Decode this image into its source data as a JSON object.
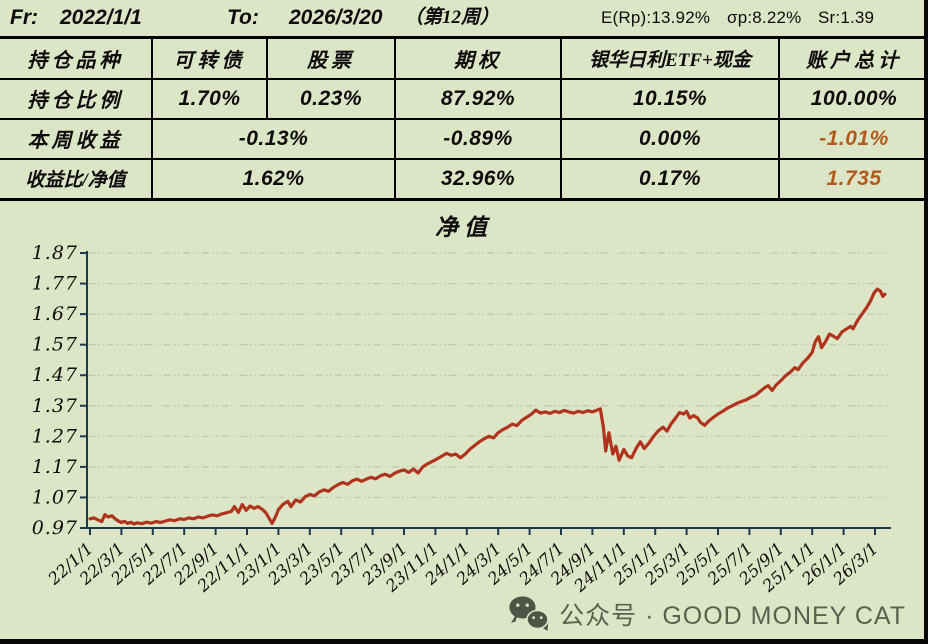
{
  "header": {
    "fr_label": "Fr:",
    "fr_value": "2022/1/1",
    "to_label": "To:",
    "to_value": "2026/3/20",
    "week_note": "（第12周）",
    "stat_erp": "E(Rp):13.92%",
    "stat_sigma": "σp:8.22%",
    "stat_sr": "Sr:1.39"
  },
  "table": {
    "columns": [
      "持仓品种",
      "可转债",
      "股票",
      "期权",
      "银华日利ETF+现金",
      "账户总计"
    ],
    "row_ratio": {
      "label": "持仓比例",
      "cells": [
        "1.70%",
        "0.23%",
        "87.92%",
        "10.15%",
        "100.00%"
      ]
    },
    "row_week": {
      "label": "本周收益",
      "merged": "-0.13%",
      "option": "-0.89%",
      "etf": "0.00%",
      "total": "-1.01%"
    },
    "row_return": {
      "label": "收益比/净值",
      "merged": "1.62%",
      "option": "32.96%",
      "etf": "0.17%",
      "total": "1.735"
    }
  },
  "chart_data": {
    "type": "line",
    "title": "净值",
    "xlabel": "",
    "ylabel": "",
    "ylim": [
      0.97,
      1.87
    ],
    "grid": "horizontal dash-dot",
    "legend": "none",
    "line_color": "#b0331d",
    "axis_color": "#1c3a4a",
    "y_ticks": [
      "0.97",
      "1.07",
      "1.17",
      "1.27",
      "1.37",
      "1.47",
      "1.57",
      "1.67",
      "1.77",
      "1.87"
    ],
    "x_labels": [
      "22/1/1",
      "22/3/1",
      "22/5/1",
      "22/7/1",
      "22/9/1",
      "22/11/1",
      "23/1/1",
      "23/3/1",
      "23/5/1",
      "23/7/1",
      "23/9/1",
      "23/11/1",
      "24/1/1",
      "24/3/1",
      "24/5/1",
      "24/7/1",
      "24/9/1",
      "24/11/1",
      "25/1/1",
      "25/3/1",
      "25/5/1",
      "25/7/1",
      "25/9/1",
      "25/11/1",
      "26/1/1",
      "26/3/1"
    ],
    "x_months_per_tick": 2,
    "series": [
      {
        "name": "净值",
        "x_unit": "months since 2022/1/1",
        "points": [
          [
            0,
            1.0
          ],
          [
            0.25,
            1.003
          ],
          [
            0.5,
            0.997
          ],
          [
            0.75,
            0.991
          ],
          [
            0.95,
            1.014
          ],
          [
            1.15,
            1.006
          ],
          [
            1.4,
            1.01
          ],
          [
            1.6,
            1.0
          ],
          [
            1.8,
            0.993
          ],
          [
            2.0,
            0.988
          ],
          [
            2.2,
            0.992
          ],
          [
            2.4,
            0.985
          ],
          [
            2.6,
            0.989
          ],
          [
            2.8,
            0.983
          ],
          [
            3.0,
            0.987
          ],
          [
            3.3,
            0.984
          ],
          [
            3.6,
            0.989
          ],
          [
            3.9,
            0.986
          ],
          [
            4.2,
            0.991
          ],
          [
            4.5,
            0.988
          ],
          [
            4.8,
            0.993
          ],
          [
            5.1,
            0.997
          ],
          [
            5.4,
            0.994
          ],
          [
            5.7,
            1.0
          ],
          [
            6.0,
            0.998
          ],
          [
            6.3,
            1.003
          ],
          [
            6.6,
            1.0
          ],
          [
            6.9,
            1.006
          ],
          [
            7.2,
            1.003
          ],
          [
            7.5,
            1.009
          ],
          [
            7.8,
            1.013
          ],
          [
            8.1,
            1.01
          ],
          [
            8.4,
            1.016
          ],
          [
            8.7,
            1.02
          ],
          [
            9.0,
            1.024
          ],
          [
            9.2,
            1.04
          ],
          [
            9.45,
            1.021
          ],
          [
            9.7,
            1.047
          ],
          [
            9.95,
            1.028
          ],
          [
            10.2,
            1.042
          ],
          [
            10.45,
            1.034
          ],
          [
            10.7,
            1.04
          ],
          [
            11.0,
            1.03
          ],
          [
            11.2,
            1.02
          ],
          [
            11.45,
            0.998
          ],
          [
            11.6,
            0.985
          ],
          [
            11.8,
            1.005
          ],
          [
            12.0,
            1.03
          ],
          [
            12.3,
            1.048
          ],
          [
            12.6,
            1.057
          ],
          [
            12.8,
            1.04
          ],
          [
            13.1,
            1.062
          ],
          [
            13.4,
            1.055
          ],
          [
            13.7,
            1.072
          ],
          [
            14.0,
            1.08
          ],
          [
            14.3,
            1.075
          ],
          [
            14.6,
            1.088
          ],
          [
            14.9,
            1.095
          ],
          [
            15.2,
            1.09
          ],
          [
            15.5,
            1.103
          ],
          [
            15.8,
            1.112
          ],
          [
            16.1,
            1.119
          ],
          [
            16.4,
            1.113
          ],
          [
            16.7,
            1.124
          ],
          [
            17.0,
            1.13
          ],
          [
            17.3,
            1.123
          ],
          [
            17.6,
            1.13
          ],
          [
            17.9,
            1.136
          ],
          [
            18.2,
            1.131
          ],
          [
            18.5,
            1.141
          ],
          [
            18.8,
            1.146
          ],
          [
            19.1,
            1.139
          ],
          [
            19.4,
            1.149
          ],
          [
            19.7,
            1.156
          ],
          [
            20.0,
            1.16
          ],
          [
            20.3,
            1.152
          ],
          [
            20.6,
            1.163
          ],
          [
            20.9,
            1.15
          ],
          [
            21.2,
            1.17
          ],
          [
            21.5,
            1.18
          ],
          [
            21.8,
            1.188
          ],
          [
            22.1,
            1.196
          ],
          [
            22.4,
            1.205
          ],
          [
            22.7,
            1.214
          ],
          [
            23.0,
            1.208
          ],
          [
            23.3,
            1.212
          ],
          [
            23.6,
            1.2
          ],
          [
            23.9,
            1.212
          ],
          [
            24.2,
            1.228
          ],
          [
            24.5,
            1.24
          ],
          [
            24.8,
            1.252
          ],
          [
            25.1,
            1.262
          ],
          [
            25.4,
            1.27
          ],
          [
            25.7,
            1.265
          ],
          [
            26.0,
            1.282
          ],
          [
            26.3,
            1.292
          ],
          [
            26.6,
            1.3
          ],
          [
            26.9,
            1.31
          ],
          [
            27.2,
            1.305
          ],
          [
            27.5,
            1.322
          ],
          [
            27.8,
            1.332
          ],
          [
            28.1,
            1.342
          ],
          [
            28.4,
            1.356
          ],
          [
            28.7,
            1.346
          ],
          [
            29.0,
            1.35
          ],
          [
            29.3,
            1.345
          ],
          [
            29.6,
            1.352
          ],
          [
            29.9,
            1.348
          ],
          [
            30.2,
            1.355
          ],
          [
            30.5,
            1.35
          ],
          [
            30.8,
            1.346
          ],
          [
            31.1,
            1.352
          ],
          [
            31.4,
            1.348
          ],
          [
            31.7,
            1.354
          ],
          [
            32.0,
            1.35
          ],
          [
            32.3,
            1.356
          ],
          [
            32.5,
            1.36
          ],
          [
            32.7,
            1.3
          ],
          [
            32.85,
            1.222
          ],
          [
            33.05,
            1.282
          ],
          [
            33.3,
            1.212
          ],
          [
            33.5,
            1.238
          ],
          [
            33.7,
            1.192
          ],
          [
            34.0,
            1.227
          ],
          [
            34.25,
            1.206
          ],
          [
            34.5,
            1.2
          ],
          [
            34.8,
            1.232
          ],
          [
            35.05,
            1.252
          ],
          [
            35.3,
            1.23
          ],
          [
            35.6,
            1.248
          ],
          [
            35.9,
            1.27
          ],
          [
            36.2,
            1.288
          ],
          [
            36.5,
            1.3
          ],
          [
            36.75,
            1.287
          ],
          [
            37.0,
            1.31
          ],
          [
            37.3,
            1.33
          ],
          [
            37.55,
            1.348
          ],
          [
            37.8,
            1.343
          ],
          [
            38.0,
            1.352
          ],
          [
            38.2,
            1.33
          ],
          [
            38.45,
            1.338
          ],
          [
            38.7,
            1.33
          ],
          [
            38.9,
            1.315
          ],
          [
            39.15,
            1.306
          ],
          [
            39.4,
            1.32
          ],
          [
            39.7,
            1.332
          ],
          [
            40.0,
            1.343
          ],
          [
            40.3,
            1.352
          ],
          [
            40.6,
            1.362
          ],
          [
            40.9,
            1.37
          ],
          [
            41.2,
            1.378
          ],
          [
            41.5,
            1.384
          ],
          [
            41.8,
            1.39
          ],
          [
            42.1,
            1.398
          ],
          [
            42.4,
            1.405
          ],
          [
            42.7,
            1.418
          ],
          [
            43.0,
            1.43
          ],
          [
            43.2,
            1.436
          ],
          [
            43.45,
            1.42
          ],
          [
            43.7,
            1.438
          ],
          [
            44.0,
            1.452
          ],
          [
            44.3,
            1.468
          ],
          [
            44.6,
            1.48
          ],
          [
            44.9,
            1.495
          ],
          [
            45.1,
            1.488
          ],
          [
            45.4,
            1.51
          ],
          [
            45.7,
            1.525
          ],
          [
            46.0,
            1.545
          ],
          [
            46.2,
            1.58
          ],
          [
            46.4,
            1.596
          ],
          [
            46.6,
            1.56
          ],
          [
            46.85,
            1.58
          ],
          [
            47.1,
            1.605
          ],
          [
            47.35,
            1.598
          ],
          [
            47.6,
            1.59
          ],
          [
            47.9,
            1.612
          ],
          [
            48.2,
            1.622
          ],
          [
            48.45,
            1.63
          ],
          [
            48.6,
            1.622
          ],
          [
            48.9,
            1.65
          ],
          [
            49.2,
            1.672
          ],
          [
            49.45,
            1.69
          ],
          [
            49.7,
            1.712
          ],
          [
            49.95,
            1.74
          ],
          [
            50.15,
            1.752
          ],
          [
            50.35,
            1.745
          ],
          [
            50.5,
            1.728
          ],
          [
            50.63,
            1.735
          ]
        ]
      }
    ]
  },
  "footer": {
    "text": "公众号 · GOOD MONEY CAT"
  },
  "colors": {
    "background": "#dce6c6",
    "line": "#b0331d",
    "axis": "#1c3a4a",
    "gridline": "#bcc5ab",
    "accent_orange": "#b05a1e",
    "footer_gray": "#5a6150"
  }
}
